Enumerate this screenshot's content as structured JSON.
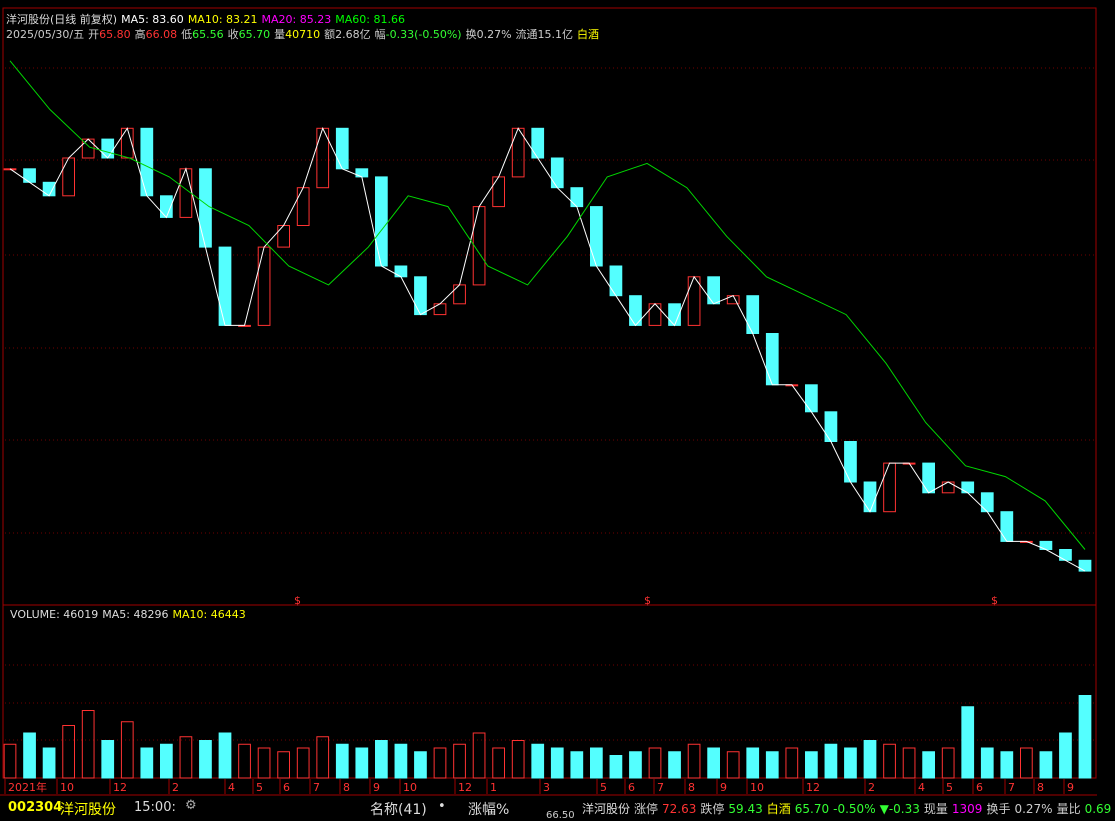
{
  "header": {
    "name": "洋河股份",
    "mode": "(日线 前复权)",
    "ma5": "MA5: 83.60",
    "ma10": "MA10: 83.21",
    "ma20": "MA20: 85.23",
    "ma60": "MA60: 81.66",
    "date": "2025/05/30/五",
    "open_label": "开",
    "open": "65.80",
    "high_label": "高",
    "high": "66.08",
    "low_label": "低",
    "low": "65.56",
    "close_label": "收",
    "close": "65.70",
    "vol_label": "量",
    "vol": "40710",
    "amount_label": "额",
    "amount": "2.68亿",
    "change_label": "幅",
    "change": "-0.33(-0.50%)",
    "turnover_label": "换",
    "turnover": "0.27%",
    "float_label": "流通",
    "float": "15.1亿",
    "sector": "白酒"
  },
  "price_chart": {
    "type": "candlestick",
    "up_color": "#ff3232",
    "down_color": "#54ffff",
    "line_color": "#ffffff",
    "ylim": [
      60,
      260
    ],
    "closes": [
      216,
      211,
      206,
      220,
      227,
      220,
      231,
      206,
      198,
      216,
      187,
      158,
      158,
      187,
      195,
      209,
      231,
      216,
      213,
      180,
      176,
      162,
      166,
      173,
      202,
      213,
      231,
      220,
      209,
      202,
      180,
      169,
      158,
      166,
      158,
      176,
      166,
      169,
      155,
      136,
      136,
      126,
      115,
      100,
      89,
      107,
      107,
      96,
      100,
      96,
      89,
      78,
      78,
      75,
      71,
      67
    ],
    "ma60": {
      "color": "#00d800",
      "values": [
        256,
        238,
        224,
        220,
        213,
        202,
        195,
        180,
        173,
        187,
        206,
        202,
        180,
        173,
        191,
        213,
        218,
        209,
        191,
        176,
        169,
        162,
        144,
        122,
        106,
        102,
        93,
        75
      ]
    }
  },
  "volume_chart": {
    "type": "bar",
    "title": "VOLUME: 46019",
    "ma5": "MA5: 48296",
    "ma10": "MA10: 46443",
    "ylim": [
      0,
      200000
    ],
    "up_color": "#ff3232",
    "down_color": "#54ffff",
    "values": [
      45000,
      60000,
      40000,
      70000,
      90000,
      50000,
      75000,
      40000,
      45000,
      55000,
      50000,
      60000,
      45000,
      40000,
      35000,
      40000,
      55000,
      45000,
      40000,
      50000,
      45000,
      35000,
      40000,
      45000,
      60000,
      40000,
      50000,
      45000,
      40000,
      35000,
      40000,
      30000,
      35000,
      40000,
      35000,
      45000,
      40000,
      35000,
      40000,
      35000,
      40000,
      35000,
      45000,
      40000,
      50000,
      45000,
      40000,
      35000,
      40000,
      95000,
      40000,
      35000,
      40000,
      35000,
      60000,
      110000
    ]
  },
  "time_axis": {
    "labels": [
      "2021年",
      "10",
      "12",
      "2",
      "4",
      "5",
      "6",
      "7",
      "8",
      "9",
      "10",
      "12",
      "1",
      "3",
      "5",
      "6",
      "7",
      "8",
      "9",
      "10",
      "12",
      "2",
      "4",
      "5",
      "6",
      "7",
      "8",
      "9"
    ]
  },
  "status_bar": {
    "code": "002304",
    "name": "洋河股份",
    "time": "15:00:",
    "col_name": "名称(41)",
    "dot": "•",
    "col_change": "涨幅%",
    "small_price": "66.50",
    "name2": "洋河股份",
    "limit_up_label": "涨停",
    "limit_up": "72.63",
    "limit_down_label": "跌停",
    "limit_down": "59.43",
    "sector": "白酒",
    "price": "65.70",
    "pct": "-0.50%",
    "diff": "▼-0.33",
    "cur_vol_label": "现量",
    "cur_vol": "1309",
    "turn_label": "换手",
    "turn": "0.27%",
    "ratio_label": "量比",
    "ratio": "0.69"
  }
}
